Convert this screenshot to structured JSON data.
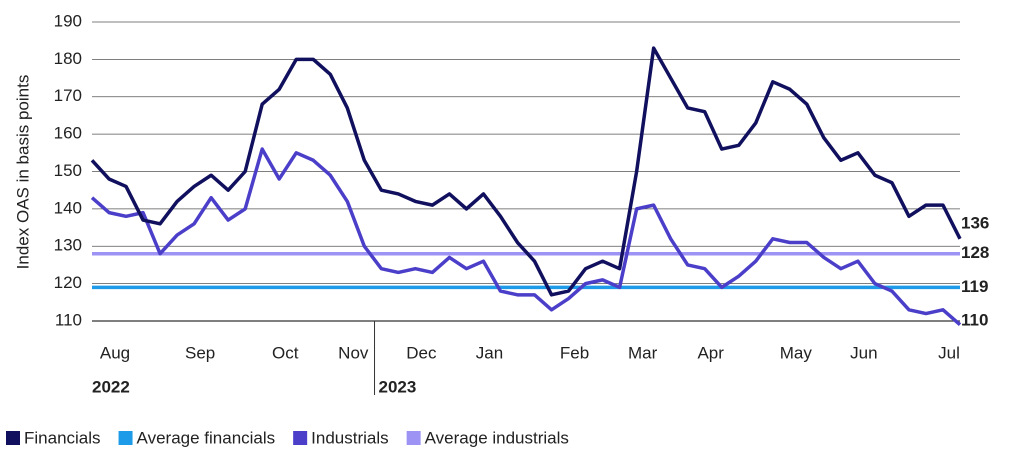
{
  "chart_data": {
    "type": "line",
    "y_label": "Index OAS in basis points",
    "categories": [
      null,
      "Aug",
      null,
      null,
      null,
      null,
      "Sep",
      null,
      null,
      null,
      null,
      "Oct",
      null,
      null,
      null,
      "Nov",
      null,
      null,
      null,
      "Dec",
      null,
      null,
      null,
      "Jan",
      null,
      null,
      null,
      null,
      "Feb",
      null,
      null,
      null,
      "Mar",
      null,
      null,
      null,
      "Apr",
      null,
      null,
      null,
      null,
      "May",
      null,
      null,
      null,
      "Jun",
      null,
      null,
      null,
      null,
      "Jul",
      null
    ],
    "year_labels": [
      "2022",
      "2023"
    ],
    "series": [
      {
        "name": "Financials",
        "color": "#10105e",
        "values": [
          153,
          148,
          146,
          137,
          136,
          142,
          146,
          149,
          145,
          150,
          168,
          172,
          180,
          180,
          176,
          167,
          153,
          145,
          144,
          142,
          141,
          144,
          140,
          144,
          138,
          131,
          126,
          117,
          118,
          124,
          126,
          124,
          150,
          183,
          175,
          167,
          166,
          156,
          157,
          163,
          174,
          172,
          168,
          159,
          153,
          155,
          149,
          147,
          138,
          141,
          141,
          132
        ]
      },
      {
        "name": "Industrials",
        "color": "#4b3fc9",
        "values": [
          143,
          139,
          138,
          139,
          128,
          133,
          136,
          143,
          137,
          140,
          156,
          148,
          155,
          153,
          149,
          142,
          130,
          124,
          123,
          124,
          123,
          127,
          124,
          126,
          118,
          117,
          117,
          113,
          116,
          120,
          121,
          119,
          140,
          141,
          132,
          125,
          124,
          119,
          122,
          126,
          132,
          131,
          131,
          127,
          124,
          126,
          120,
          118,
          113,
          112,
          113,
          109
        ]
      }
    ],
    "reference_lines": [
      {
        "name": "Average financials",
        "color": "#1e9be8",
        "value": 119
      },
      {
        "name": "Average industrials",
        "color": "#9d93f5",
        "value": 128
      }
    ],
    "end_labels": [
      136,
      128,
      119,
      110
    ],
    "ylim": [
      110,
      190
    ],
    "yticks": [
      110,
      120,
      130,
      140,
      150,
      160,
      170,
      180,
      190
    ],
    "grid": true
  }
}
